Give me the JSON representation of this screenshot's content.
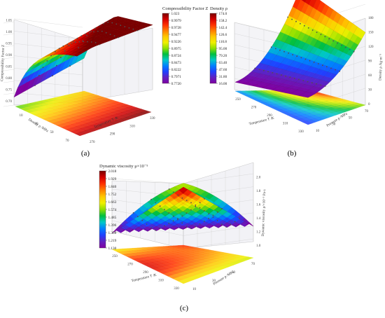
{
  "chart_data": [
    {
      "type": "surface3d",
      "panel_label": "(a)",
      "title": "",
      "xlabel": "Density ρ /MPa",
      "ylabel": "Temperature T /K",
      "zlabel": "Compressibility Factor Z",
      "zlim": [
        0.7,
        1.05
      ],
      "z_ticks": [
        "0.70",
        "0.75",
        "0.80",
        "0.85",
        "0.90",
        "0.95",
        "1.00",
        "1.05"
      ],
      "x_ticks": [
        "10",
        "30",
        "50",
        "70"
      ],
      "y_ticks": [
        "270",
        "290",
        "310",
        "330"
      ],
      "colorbar": {
        "title": "Compressibility Factor Z",
        "ticks": [
          "1.023",
          "0.9979",
          "0.9728",
          "0.9477",
          "0.9226",
          "0.8975",
          "0.8724",
          "0.8473",
          "0.8222",
          "0.7971",
          "0.7720"
        ]
      },
      "grid": true
    },
    {
      "type": "surface3d",
      "panel_label": "(b)",
      "title": "",
      "xlabel": "Temperature T /K",
      "ylabel": "Pressure p /MPa",
      "zlabel": "Density ρ /kg·m⁻³",
      "zlim": [
        0,
        180
      ],
      "z_ticks": [
        "0",
        "30",
        "60",
        "90",
        "120",
        "150",
        "180"
      ],
      "x_ticks": [
        "250",
        "270",
        "290",
        "310",
        "330"
      ],
      "y_ticks": [
        "10",
        "30",
        "50",
        "70"
      ],
      "colorbar": {
        "title": "Density ρ",
        "ticks": [
          "174.0",
          "158.2",
          "142.4",
          "126.6",
          "110.8",
          "95.00",
          "79.20",
          "63.40",
          "47.60",
          "31.80",
          "16.00"
        ]
      },
      "grid": true
    },
    {
      "type": "surface3d",
      "panel_label": "(c)",
      "title": "",
      "xlabel": "Temperature T /K",
      "ylabel": "Pressure p /MPa",
      "zlabel": "Dynamic viscosity μ/×10⁻⁵ Pa·s",
      "zlim": [
        1.0,
        2.0
      ],
      "z_ticks": [
        "1.0",
        "1.2",
        "1.4",
        "1.6",
        "1.8",
        "2.0"
      ],
      "x_ticks": [
        "250",
        "270",
        "290",
        "310",
        "330"
      ],
      "y_ticks": [
        "10",
        "30",
        "50",
        "70"
      ],
      "colorbar": {
        "title": "Dynamic viscosity μ×10⁻⁵",
        "ticks": [
          "2.018",
          "1.929",
          "1.840",
          "1.752",
          "1.663",
          "1.574",
          "1.485",
          "1.396",
          "1.308",
          "1.219",
          "1.130"
        ]
      },
      "grid": true
    }
  ],
  "colormap": [
    "#7a0000",
    "#d40000",
    "#ff3000",
    "#ff8000",
    "#ffc800",
    "#f0f000",
    "#90e000",
    "#00c040",
    "#00c8c8",
    "#0080ff",
    "#2040ff",
    "#6020c0",
    "#8000a0"
  ],
  "colors": {
    "grid": "#c8c8c8",
    "wall": "#f3f3f6",
    "marker": "#505050"
  }
}
